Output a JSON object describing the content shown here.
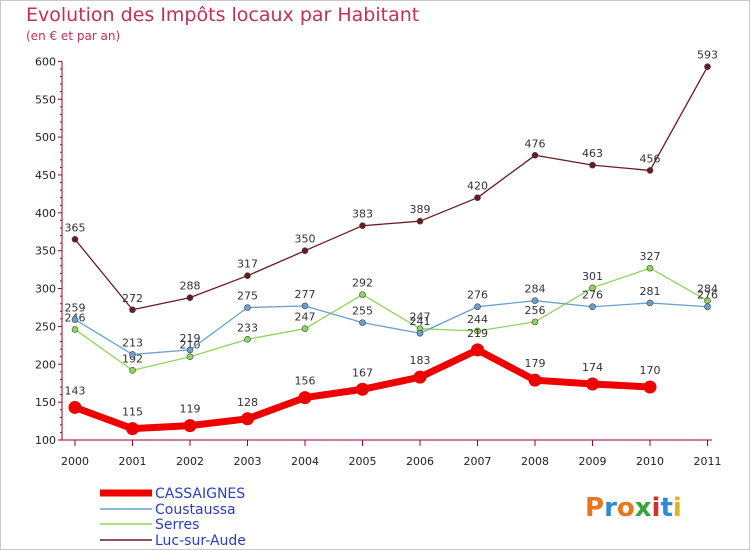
{
  "title": "Evolution des Impôts locaux par Habitant",
  "subtitle": "(en € et par an)",
  "logo": {
    "text": "Proxiti",
    "colors": [
      "#e8761c",
      "#2e8bd6",
      "#e8761c",
      "#3aa33a",
      "#d62e2e",
      "#2e8bd6",
      "#e8b01c"
    ]
  },
  "chart_data": {
    "type": "line",
    "x": [
      "2000",
      "2001",
      "2002",
      "2003",
      "2004",
      "2005",
      "2006",
      "2007",
      "2008",
      "2009",
      "2010",
      "2011"
    ],
    "ylim": [
      100,
      600
    ],
    "yticks": [
      100,
      150,
      200,
      250,
      300,
      350,
      400,
      450,
      500,
      550,
      600
    ],
    "grid": false,
    "legend_position": "bottom-left",
    "series": [
      {
        "name": "Luc-sur-Aude",
        "color": "#6b1a22",
        "values": [
          365,
          272,
          288,
          317,
          350,
          383,
          389,
          420,
          476,
          463,
          456,
          593
        ]
      },
      {
        "name": "Serres",
        "color": "#8ed65a",
        "values": [
          246,
          192,
          210,
          233,
          247,
          292,
          247,
          244,
          256,
          301,
          327,
          284
        ]
      },
      {
        "name": "Coustaussa",
        "color": "#6aa0d0",
        "values": [
          259,
          213,
          219,
          275,
          277,
          255,
          241,
          276,
          284,
          276,
          281,
          276
        ]
      },
      {
        "name": "CASSAIGNES",
        "color": "#ee0000",
        "values": [
          143,
          115,
          119,
          128,
          156,
          167,
          183,
          219,
          179,
          174,
          170,
          null
        ]
      }
    ],
    "legend": [
      "CASSAIGNES",
      "Coustaussa",
      "Serres",
      "Luc-sur-Aude"
    ]
  }
}
